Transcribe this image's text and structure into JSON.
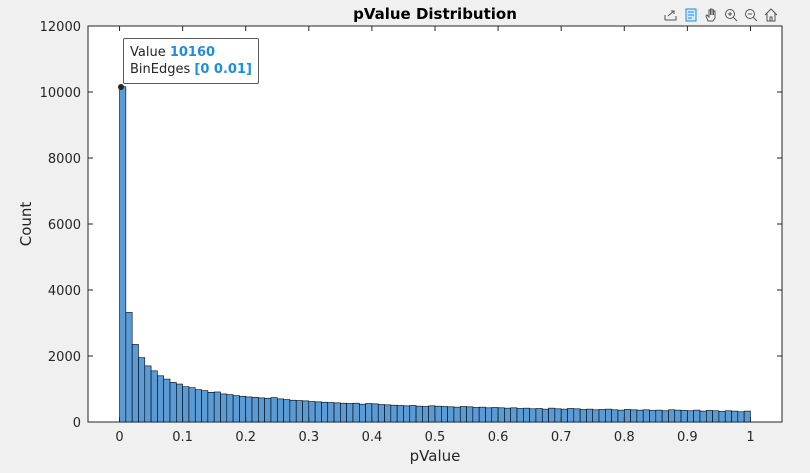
{
  "chart_data": {
    "type": "bar",
    "title": "pValue Distribution",
    "xlabel": "pValue",
    "ylabel": "Count",
    "xlim": [
      -0.05,
      1.05
    ],
    "ylim": [
      0,
      12000
    ],
    "bin_width": 0.01,
    "xticks": [
      0,
      0.1,
      0.2,
      0.3,
      0.4,
      0.5,
      0.6,
      0.7,
      0.8,
      0.9,
      1
    ],
    "xtick_labels": [
      "0",
      "0.1",
      "0.2",
      "0.3",
      "0.4",
      "0.5",
      "0.6",
      "0.7",
      "0.8",
      "0.9",
      "1"
    ],
    "yticks": [
      0,
      2000,
      4000,
      6000,
      8000,
      10000,
      12000
    ],
    "ytick_labels": [
      "0",
      "2000",
      "4000",
      "6000",
      "8000",
      "10000",
      "12000"
    ],
    "bar_color": "#5b9bd5",
    "edge_color": "#000000",
    "values": [
      10160,
      3320,
      2350,
      1950,
      1700,
      1550,
      1400,
      1300,
      1200,
      1150,
      1070,
      1040,
      980,
      950,
      900,
      910,
      850,
      830,
      800,
      780,
      760,
      750,
      730,
      720,
      740,
      700,
      680,
      660,
      650,
      640,
      620,
      610,
      600,
      590,
      580,
      570,
      560,
      570,
      540,
      560,
      550,
      530,
      520,
      510,
      500,
      490,
      500,
      480,
      470,
      490,
      480,
      470,
      460,
      450,
      470,
      460,
      440,
      450,
      430,
      440,
      430,
      420,
      430,
      410,
      420,
      400,
      410,
      390,
      420,
      400,
      390,
      410,
      400,
      380,
      390,
      370,
      380,
      390,
      370,
      360,
      380,
      370,
      360,
      370,
      350,
      360,
      340,
      370,
      360,
      350,
      340,
      360,
      330,
      350,
      340,
      320,
      340,
      330,
      310,
      330
    ]
  },
  "datatip": {
    "value_label": "Value",
    "value": "10160",
    "edges_label": "BinEdges",
    "edges": "[0 0.01]"
  },
  "toolbar": {
    "icons": [
      "export-icon",
      "datatip-icon",
      "pan-icon",
      "zoom-in-icon",
      "zoom-out-icon",
      "home-icon"
    ]
  }
}
